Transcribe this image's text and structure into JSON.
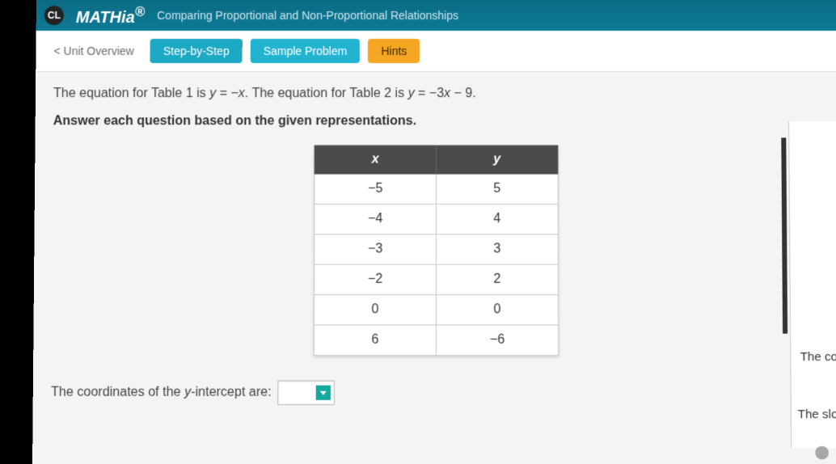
{
  "header": {
    "logo_text": "CL",
    "app_name": "MATHia",
    "lesson_title": "Comparing Proportional and Non-Proportional Relationships"
  },
  "nav": {
    "overview": "< Unit Overview",
    "step": "Step-by-Step",
    "sample": "Sample Problem",
    "hints": "Hints"
  },
  "problem": {
    "equation_prefix1": "The equation for Table 1 is ",
    "equation1_lhs": "y",
    "equation1_eq": " = −",
    "equation1_rhs": "x",
    "equation_mid": ". The equation for Table 2 is ",
    "equation2_lhs": "y",
    "equation2_eq": " = −3",
    "equation2_rhs": "x",
    "equation2_tail": " − 9.",
    "instruction": "Answer each question based on the given representations."
  },
  "table": {
    "col_x": "x",
    "col_y": "y",
    "rows": [
      {
        "x": "−5",
        "y": "5"
      },
      {
        "x": "−4",
        "y": "4"
      },
      {
        "x": "−3",
        "y": "3"
      },
      {
        "x": "−2",
        "y": "2"
      },
      {
        "x": "0",
        "y": "0"
      },
      {
        "x": "6",
        "y": "−6"
      }
    ]
  },
  "question": {
    "prefix": "The coordinates of the ",
    "var": "y",
    "suffix": "-intercept are:"
  },
  "right": {
    "line1": "The co",
    "line2": "The slo"
  },
  "colors": {
    "header_bg": "#0d7a96",
    "teal_btn": "#1da8c4",
    "orange_btn": "#f5a623",
    "table_header": "#4a4a48",
    "border": "#c9c9c7",
    "dropdown_caret": "#14a89e"
  }
}
